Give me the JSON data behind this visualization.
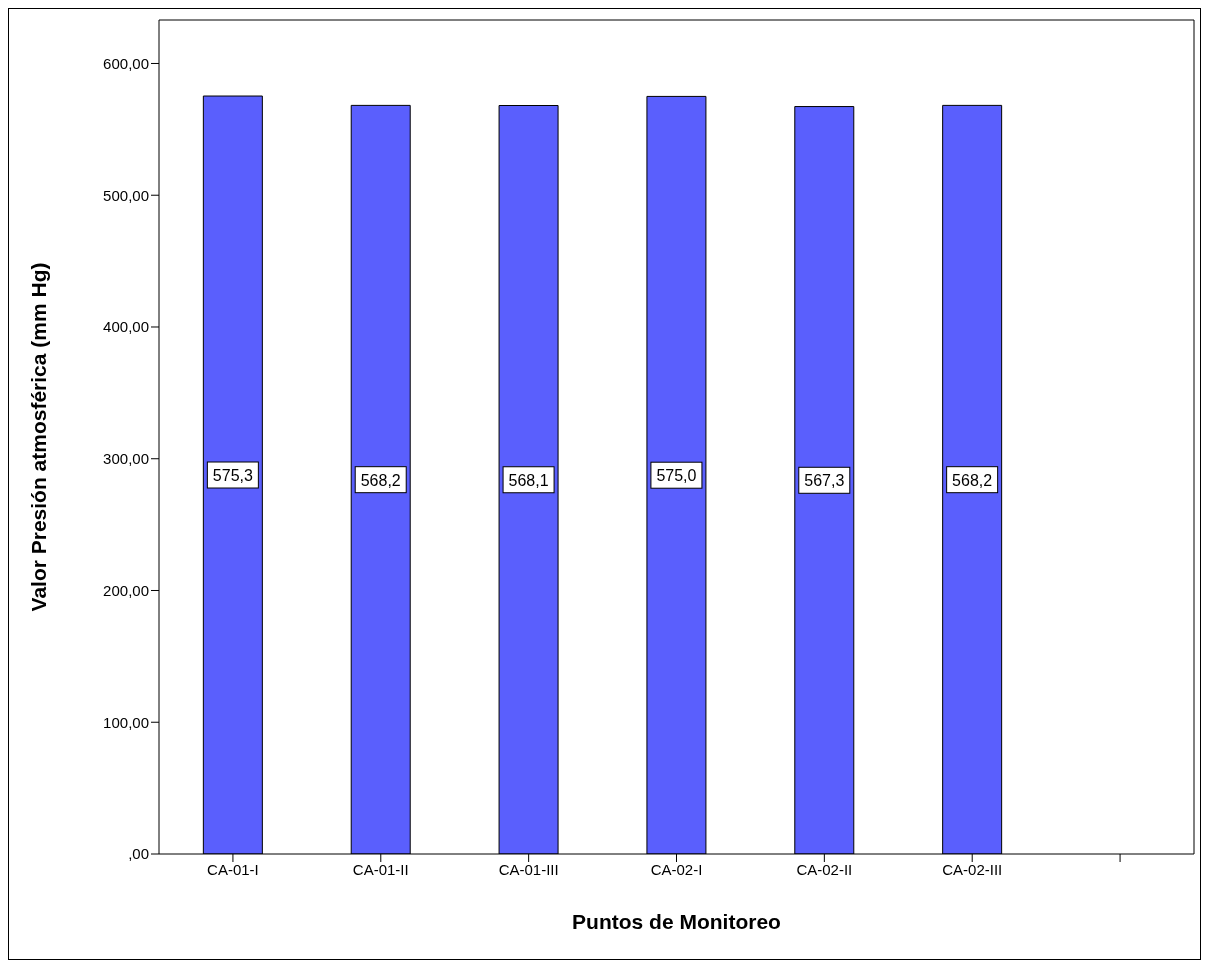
{
  "chart_data": {
    "type": "bar",
    "xlabel": "Puntos de Monitoreo",
    "ylabel": "Valor Presión atmosférica (mm Hg)",
    "categories": [
      "CA-01-I",
      "CA-01-II",
      "CA-01-III",
      "CA-02-I",
      "CA-02-II",
      "CA-02-III",
      null
    ],
    "values": [
      575.3,
      568.2,
      568.1,
      575.0,
      567.3,
      568.2,
      null
    ],
    "value_labels": [
      "575,3",
      "568,2",
      "568,1",
      "575,0",
      "567,3",
      "568,2",
      null
    ],
    "color": "#5a5ffd",
    "ylim": [
      0,
      633
    ],
    "yticks": [
      {
        "value": 0,
        "label": ",00"
      },
      {
        "value": 100,
        "label": "100,00"
      },
      {
        "value": 200,
        "label": "200,00"
      },
      {
        "value": 300,
        "label": "300,00"
      },
      {
        "value": 400,
        "label": "400,00"
      },
      {
        "value": 500,
        "label": "500,00"
      },
      {
        "value": 600,
        "label": "600,00"
      }
    ],
    "grid": false,
    "legend": false
  }
}
